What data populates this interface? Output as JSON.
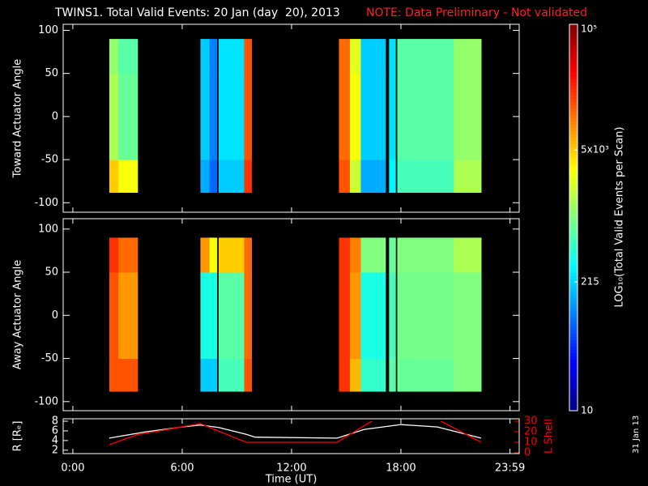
{
  "header": {
    "title": "TWINS1. Total Valid Events: 20 Jan (day  20), 2013",
    "note": "NOTE: Data Preliminary - Not validated",
    "stamp": "31 Jan 13"
  },
  "colorbar": {
    "label": "LOG₁₀(Total Valid Events per Scan)",
    "log": true,
    "colormap": "jet",
    "lim": [
      10,
      100000
    ],
    "ticks": [
      {
        "value": 10,
        "label": "10"
      },
      215,
      {
        "value": 5000,
        "label": "5x10³"
      },
      {
        "value": 100000,
        "label": "10⁵"
      }
    ]
  },
  "chart_data": [
    {
      "type": "heatmap",
      "ylabel": "Toward Actuator Angle",
      "ylim": [
        -111,
        107
      ],
      "yticks": [
        -100,
        -50,
        0,
        50,
        100
      ],
      "x_edges": [
        2.0,
        2.5,
        3.55,
        7.0,
        7.5,
        7.9,
        8.0,
        9.4,
        9.8,
        14.6,
        15.2,
        15.8,
        17.15,
        17.35,
        17.7,
        17.8,
        20.9,
        22.4
      ],
      "y_edges": [
        -88,
        -50,
        50,
        90
      ],
      "values": [
        [
          5000,
          3000,
          null,
          150,
          80,
          null,
          200,
          20000,
          null,
          15000,
          2000,
          150,
          null,
          300,
          null,
          600,
          1500
        ],
        [
          1500,
          800,
          null,
          200,
          100,
          null,
          250,
          15000,
          null,
          12000,
          3000,
          200,
          null,
          250,
          null,
          700,
          1200
        ],
        [
          1200,
          700,
          null,
          200,
          100,
          null,
          250,
          15000,
          null,
          12000,
          2500,
          200,
          null,
          250,
          null,
          700,
          1200
        ]
      ]
    },
    {
      "type": "heatmap",
      "ylabel": "Away Actuator Angle",
      "ylim": [
        -110.5,
        112
      ],
      "yticks": [
        -100,
        -50,
        0,
        50,
        100
      ],
      "x_edges": [
        2.0,
        2.5,
        3.55,
        7.0,
        7.5,
        7.9,
        8.0,
        9.4,
        9.8,
        14.6,
        15.2,
        15.8,
        17.15,
        17.35,
        17.7,
        17.8,
        20.9,
        22.4
      ],
      "y_edges": [
        -88,
        -50,
        50,
        90
      ],
      "values": [
        [
          15000,
          15000,
          null,
          200,
          200,
          null,
          600,
          15000,
          null,
          20000,
          6000,
          500,
          null,
          700,
          null,
          800,
          1000
        ],
        [
          15000,
          8000,
          null,
          400,
          400,
          null,
          700,
          12000,
          null,
          20000,
          8000,
          400,
          null,
          600,
          null,
          900,
          1000
        ],
        [
          20000,
          12000,
          null,
          8000,
          3000,
          null,
          5000,
          12000,
          null,
          20000,
          10000,
          1000,
          null,
          800,
          null,
          1000,
          1500
        ]
      ]
    },
    {
      "type": "line",
      "ylabel": "R [Rₑ]",
      "y2label": "L Shell",
      "xlabel": "Time (UT)",
      "xlim": [
        -0.53,
        24.49
      ],
      "xticks": [
        {
          "value": 0,
          "label": "0:00"
        },
        {
          "value": 6,
          "label": "6:00"
        },
        {
          "value": 12,
          "label": "12:00"
        },
        {
          "value": 18,
          "label": "18:00"
        },
        {
          "value": 23.983,
          "label": "23:59"
        }
      ],
      "ylim": [
        1.3,
        8.5
      ],
      "yticks": [
        2,
        4,
        6,
        8
      ],
      "y2lim": [
        -0.8,
        32.3
      ],
      "y2ticks": [
        0,
        10,
        20,
        30
      ],
      "series": [
        {
          "color": "#ffffff",
          "x": [
            2,
            4,
            6,
            7,
            8,
            9.5,
            10,
            14.5,
            16,
            18,
            20,
            22.4
          ],
          "values": [
            4.5,
            5.8,
            6.8,
            7.2,
            6.7,
            5.3,
            4.7,
            4.5,
            6.3,
            7.3,
            6.8,
            4.5
          ]
        },
        {
          "color": "#ff0000",
          "axis": "y2",
          "x": [
            2,
            3.5,
            7,
            9.5,
            14.5,
            16.4,
            18,
            20.2,
            22.4
          ],
          "values": [
            7.7,
            17,
            27.7,
            10,
            10,
            30,
            null,
            30,
            10
          ]
        }
      ]
    }
  ]
}
